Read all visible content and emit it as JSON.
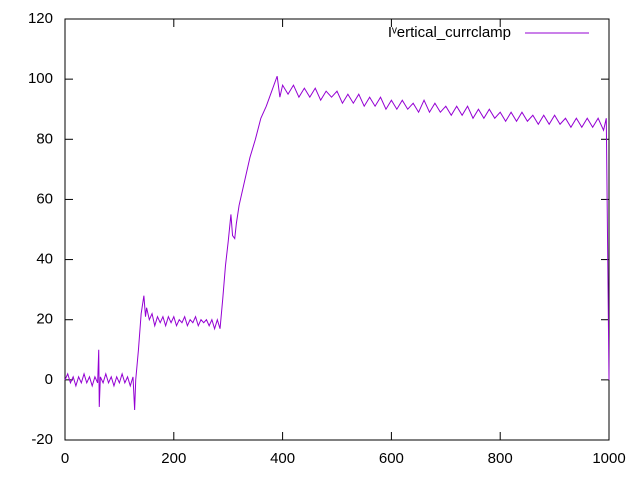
{
  "chart_data": {
    "type": "line",
    "x": [
      0,
      5,
      10,
      15,
      20,
      25,
      30,
      35,
      40,
      45,
      50,
      55,
      60,
      62,
      63,
      65,
      70,
      75,
      80,
      85,
      90,
      95,
      100,
      105,
      110,
      115,
      120,
      125,
      128,
      130,
      135,
      140,
      145,
      148,
      150,
      155,
      160,
      165,
      170,
      175,
      180,
      185,
      190,
      195,
      200,
      205,
      210,
      215,
      220,
      225,
      230,
      235,
      240,
      245,
      250,
      255,
      260,
      265,
      270,
      275,
      280,
      285,
      290,
      295,
      300,
      305,
      308,
      312,
      315,
      320,
      330,
      340,
      350,
      360,
      370,
      380,
      390,
      395,
      400,
      410,
      420,
      430,
      440,
      450,
      460,
      470,
      480,
      490,
      500,
      510,
      520,
      530,
      540,
      550,
      560,
      570,
      580,
      590,
      600,
      610,
      620,
      630,
      640,
      650,
      660,
      670,
      680,
      690,
      700,
      710,
      720,
      730,
      740,
      750,
      760,
      770,
      780,
      790,
      800,
      810,
      820,
      830,
      840,
      850,
      860,
      870,
      880,
      890,
      900,
      910,
      920,
      930,
      940,
      950,
      960,
      970,
      980,
      990,
      995,
      1000
    ],
    "series": [
      {
        "name": "Iᵛertical_currclamp",
        "color": "#9400d3",
        "values": [
          0,
          2,
          -1,
          1,
          -2,
          1,
          -1,
          2,
          -1,
          1,
          -2,
          1,
          -1,
          10,
          -9,
          1,
          -1,
          2,
          -1,
          1,
          -2,
          1,
          -1,
          2,
          -1,
          1,
          -2,
          1,
          -10,
          0,
          10,
          22,
          28,
          21,
          24,
          20,
          22,
          18,
          21,
          19,
          21,
          18,
          21,
          19,
          21,
          18,
          20,
          19,
          21,
          18,
          20,
          19,
          21,
          18,
          20,
          19,
          20,
          18,
          20,
          17,
          20,
          17,
          27,
          38,
          46,
          55,
          48,
          47,
          52,
          58,
          66,
          74,
          80,
          87,
          91,
          96,
          101,
          94,
          98,
          95,
          98,
          94,
          97,
          94,
          97,
          93,
          96,
          94,
          96,
          92,
          95,
          92,
          95,
          91,
          94,
          91,
          94,
          90,
          93,
          90,
          93,
          90,
          92,
          89,
          93,
          89,
          92,
          89,
          91,
          88,
          91,
          88,
          91,
          87,
          90,
          87,
          90,
          87,
          89,
          86,
          89,
          86,
          89,
          86,
          88,
          85,
          88,
          85,
          88,
          85,
          87,
          84,
          87,
          84,
          87,
          84,
          87,
          83,
          87,
          0
        ]
      }
    ],
    "xlim": [
      0,
      1000
    ],
    "xticks": [
      0,
      200,
      400,
      600,
      800,
      1000
    ],
    "ylim": [
      -20,
      120
    ],
    "yticks": [
      -20,
      0,
      20,
      40,
      60,
      80,
      100,
      120
    ],
    "legend": "top-right"
  }
}
